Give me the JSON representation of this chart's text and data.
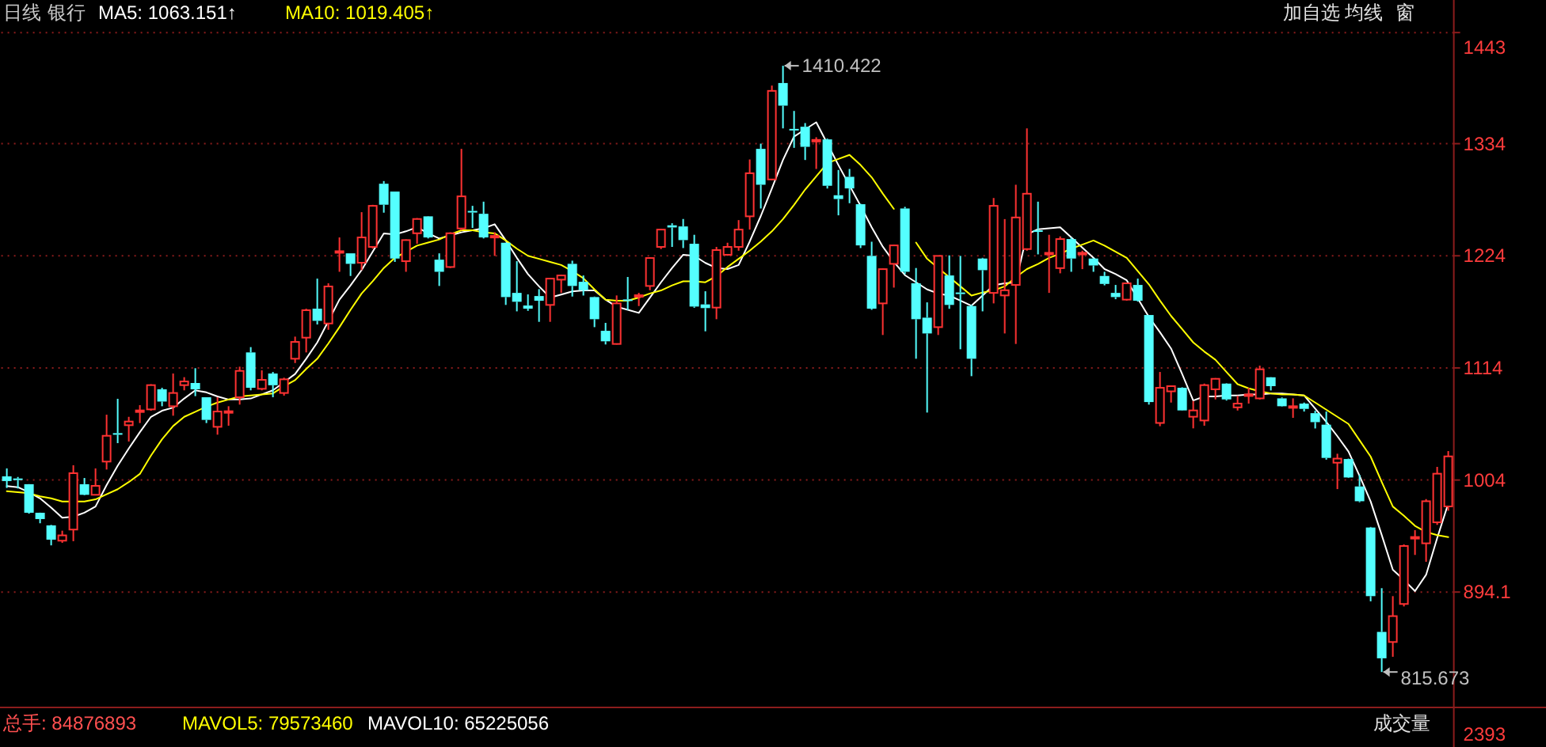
{
  "chart_data": {
    "type": "candlestick",
    "categories": [
      null,
      null,
      null,
      null,
      null,
      null,
      null,
      null,
      null,
      null,
      null,
      null,
      null,
      null,
      null,
      null,
      null,
      null,
      null,
      null,
      null,
      null,
      null,
      null,
      null,
      null,
      null,
      null,
      null,
      null,
      null,
      null,
      null,
      null,
      null,
      null,
      null,
      null,
      null,
      null,
      null,
      null,
      null,
      null,
      null,
      null,
      null,
      null,
      null,
      null,
      null,
      null,
      null,
      null,
      null,
      null,
      null,
      null,
      null,
      null,
      null,
      null,
      null,
      null,
      null,
      null,
      null,
      null,
      null,
      null,
      null,
      null,
      null,
      null,
      null,
      null,
      null,
      null,
      null,
      null,
      null,
      null,
      null,
      null,
      null,
      null,
      null,
      null,
      null,
      null,
      null,
      null,
      null,
      null,
      null,
      null,
      null,
      null,
      null,
      null,
      null,
      null,
      null,
      null,
      null,
      null,
      null,
      null,
      null,
      null,
      null,
      null,
      null,
      null,
      null,
      null,
      null,
      null,
      null,
      null,
      null,
      null,
      null,
      null,
      null,
      null,
      null,
      null,
      null,
      null,
      null
    ],
    "ohlc": [
      [
        1007.6,
        1015.4,
        996.2,
        1003
      ],
      [
        1005.5,
        1007,
        995.7,
        1004
      ],
      [
        999.9,
        1000,
        971,
        971.9
      ],
      [
        971.9,
        972,
        961.6,
        965.7
      ],
      [
        959.5,
        960,
        939.9,
        945.5
      ],
      [
        944.5,
        954.3,
        942.4,
        949.7
      ],
      [
        955.4,
        1018.5,
        944,
        1010.7
      ],
      [
        999.9,
        1006,
        989,
        989.5
      ],
      [
        989.5,
        1015.4,
        989,
        998.3
      ],
      [
        1022.1,
        1068.1,
        1014.3,
        1047.4
      ],
      [
        1050,
        1083.7,
        1040.2,
        1049
      ],
      [
        1057.8,
        1066,
        1041.8,
        1061.4
      ],
      [
        1071,
        1077.5,
        1059.9,
        1072.3
      ],
      [
        1073.3,
        1098,
        1072,
        1097.1
      ],
      [
        1093,
        1094.5,
        1076.4,
        1081
      ],
      [
        1076.4,
        1108.5,
        1067.1,
        1089.4
      ],
      [
        1097.1,
        1104.9,
        1092,
        1100.7
      ],
      [
        1099.2,
        1113.7,
        1086.3,
        1093
      ],
      [
        1085.2,
        1085.2,
        1059.9,
        1063
      ],
      [
        1056.2,
        1085.2,
        1048.5,
        1071.2
      ],
      [
        1070,
        1076.4,
        1057.3,
        1071.5
      ],
      [
        1085.2,
        1115.2,
        1078,
        1111.1
      ],
      [
        1129.2,
        1134.4,
        1092,
        1094.5
      ],
      [
        1093.5,
        1111.6,
        1092,
        1102.3
      ],
      [
        1108.5,
        1110,
        1085.2,
        1097
      ],
      [
        1089.4,
        1104.4,
        1086.8,
        1102.8
      ],
      [
        1123,
        1144.7,
        1118.8,
        1139.5
      ],
      [
        1143.7,
        1172.1,
        1129.2,
        1170.6
      ],
      [
        1172.1,
        1201.6,
        1156.6,
        1160.2
      ],
      [
        1157.6,
        1197,
        1151.4,
        1193.9
      ],
      [
        1227.5,
        1242,
        1208.3,
        1228.5
      ],
      [
        1226.4,
        1226.4,
        1204.2,
        1216.1
      ],
      [
        1217.2,
        1266.8,
        1209.9,
        1242
      ],
      [
        1232.7,
        1274,
        1231,
        1273
      ],
      [
        1294.7,
        1297.3,
        1266.3,
        1274.1
      ],
      [
        1287,
        1287,
        1218,
        1221.3
      ],
      [
        1218.7,
        1240,
        1208.3,
        1239.4
      ],
      [
        1246.1,
        1261,
        1235.8,
        1260.1
      ],
      [
        1262.7,
        1263,
        1241,
        1242
      ],
      [
        1220.2,
        1226.4,
        1194.4,
        1208.3
      ],
      [
        1213,
        1247,
        1212,
        1246.1
      ],
      [
        1250.8,
        1328.9,
        1249,
        1282.3
      ],
      [
        1268,
        1273,
        1251.3,
        1266.5
      ],
      [
        1265.2,
        1277.1,
        1241,
        1242
      ],
      [
        1243,
        1247.1,
        1223.9,
        1243.5
      ],
      [
        1236.8,
        1237,
        1175.8,
        1183.5
      ],
      [
        1187.6,
        1218.7,
        1169.5,
        1178.9
      ],
      [
        1175.2,
        1186.1,
        1170,
        1172.1
      ],
      [
        1184.5,
        1191.3,
        1159.2,
        1179.9
      ],
      [
        1175.8,
        1202,
        1159.2,
        1201.6
      ],
      [
        1200.6,
        1205.5,
        1187.6,
        1204.7
      ],
      [
        1216.1,
        1219.2,
        1184,
        1194.4
      ],
      [
        1198.5,
        1204.7,
        1185,
        1190.2
      ],
      [
        1183.5,
        1184,
        1154,
        1161.8
      ],
      [
        1150.4,
        1158.2,
        1137,
        1140.1
      ],
      [
        1137.5,
        1185.1,
        1137,
        1177.3
      ],
      [
        1181.2,
        1203.2,
        1170.6,
        1180.5
      ],
      [
        1184.8,
        1187.6,
        1174.7,
        1185.3
      ],
      [
        1194.4,
        1222.5,
        1190.2,
        1221.8
      ],
      [
        1232.7,
        1250.5,
        1230.6,
        1249.7
      ],
      [
        1253.9,
        1255.9,
        1232.7,
        1251.8
      ],
      [
        1252.8,
        1260.1,
        1231.6,
        1239.4
      ],
      [
        1235.8,
        1244.6,
        1173,
        1174.2
      ],
      [
        1176.3,
        1189.2,
        1149.9,
        1172.7
      ],
      [
        1173.2,
        1232.7,
        1161.8,
        1229.6
      ],
      [
        1225,
        1236.8,
        1224,
        1232.7
      ],
      [
        1232.7,
        1259,
        1229,
        1249.7
      ],
      [
        1262.7,
        1318.5,
        1249.7,
        1305
      ],
      [
        1328.9,
        1334,
        1270.4,
        1293.7
      ],
      [
        1298.9,
        1391,
        1298,
        1385.8
      ],
      [
        1393.5,
        1410.422,
        1349,
        1371.3
      ],
      [
        1348.5,
        1366.1,
        1329.9,
        1348
      ],
      [
        1350.6,
        1354.2,
        1318,
        1330.9
      ],
      [
        1337.5,
        1340.3,
        1309.2,
        1337.7
      ],
      [
        1338.2,
        1339,
        1290,
        1292.7
      ],
      [
        1283.4,
        1308.2,
        1263.7,
        1279.7
      ],
      [
        1301.5,
        1309.2,
        1275.6,
        1290.1
      ],
      [
        1274.6,
        1275,
        1231.6,
        1234.2
      ],
      [
        1223.9,
        1237.8,
        1171,
        1172.1
      ],
      [
        1177.3,
        1211.5,
        1146.3,
        1210.9
      ],
      [
        1216.1,
        1235,
        1192.8,
        1234.2
      ],
      [
        1270.4,
        1272,
        1206,
        1208.3
      ],
      [
        1197,
        1212,
        1123,
        1161.8
      ],
      [
        1163.3,
        1178.3,
        1070.2,
        1147.8
      ],
      [
        1154,
        1224,
        1146.3,
        1223.9
      ],
      [
        1204.7,
        1224.4,
        1172,
        1175.8
      ],
      [
        1188,
        1223.9,
        1132.3,
        1187
      ],
      [
        1174.7,
        1176,
        1105.9,
        1123
      ],
      [
        1221.3,
        1222,
        1169.5,
        1209.9
      ],
      [
        1187.6,
        1280.7,
        1177.3,
        1273
      ],
      [
        1185.1,
        1260,
        1147.8,
        1190.2
      ],
      [
        1195.4,
        1293.7,
        1137.5,
        1261.6
      ],
      [
        1230.6,
        1349,
        1229,
        1284.9
      ],
      [
        1249,
        1277.1,
        1225.4,
        1248
      ],
      [
        1226.4,
        1244.6,
        1187.6,
        1226.9
      ],
      [
        1211.9,
        1243,
        1206.8,
        1240.4
      ],
      [
        1240.4,
        1242,
        1208.3,
        1221.3
      ],
      [
        1226.4,
        1229,
        1210.9,
        1226.9
      ],
      [
        1221.3,
        1222,
        1208.3,
        1214.5
      ],
      [
        1204.2,
        1208.3,
        1195,
        1196.4
      ],
      [
        1187.6,
        1195.4,
        1181.4,
        1183.5
      ],
      [
        1181,
        1197.5,
        1180,
        1197
      ],
      [
        1195.4,
        1201.6,
        1179,
        1179.9
      ],
      [
        1165.9,
        1166,
        1078,
        1080.5
      ],
      [
        1060,
        1110,
        1056.8,
        1094.5
      ],
      [
        1091,
        1096.5,
        1080,
        1096.1
      ],
      [
        1094.5,
        1095,
        1072,
        1072.3
      ],
      [
        1066.1,
        1081.6,
        1054.7,
        1072.3
      ],
      [
        1062.4,
        1098.6,
        1057.3,
        1097.1
      ],
      [
        1093,
        1104,
        1083.1,
        1103.3
      ],
      [
        1098.6,
        1099,
        1082,
        1083.1
      ],
      [
        1075.3,
        1086.7,
        1072.2,
        1079
      ],
      [
        1087.5,
        1094.5,
        1079,
        1088
      ],
      [
        1084.1,
        1116.2,
        1083,
        1112.6
      ],
      [
        1104.8,
        1105,
        1091.9,
        1096.1
      ],
      [
        1084.1,
        1085,
        1076,
        1076.4
      ],
      [
        1076.1,
        1084.1,
        1065,
        1076.4
      ],
      [
        1079,
        1080,
        1071.2,
        1073.8
      ],
      [
        1069.6,
        1072,
        1054.6,
        1060.8
      ],
      [
        1058.3,
        1071.2,
        1024,
        1025.7
      ],
      [
        1021,
        1029.8,
        995.1,
        1025
      ],
      [
        1024.6,
        1025,
        1006,
        1006.5
      ],
      [
        997.7,
        1009.1,
        982.2,
        983.2
      ],
      [
        957.4,
        958,
        885,
        890.1
      ],
      [
        855,
        897.9,
        815.673,
        829.1
      ],
      [
        845.1,
        890.1,
        830.6,
        870.5
      ],
      [
        882.4,
        940.8,
        880,
        939.3
      ],
      [
        947.8,
        954.8,
        930.5,
        948.1
      ],
      [
        941.9,
        985.3,
        923.8,
        983.2
      ],
      [
        962.5,
        1016.9,
        960,
        1010.2
      ],
      [
        978.1,
        1032.4,
        973.9,
        1027.2
      ]
    ],
    "series": [
      {
        "type": "line",
        "color": "#ffffff",
        "values": [
          998,
          997,
          992,
          986,
          977,
          967,
          968,
          972,
          978,
          999,
          1018,
          1035,
          1051,
          1066,
          1072,
          1075,
          1084,
          1092,
          1090,
          1086,
          1083,
          1083,
          1084,
          1088,
          1092,
          1100,
          1108,
          1123,
          1139,
          1160,
          1181,
          1195,
          1210,
          1228,
          1246,
          1245,
          1248,
          1252,
          1246,
          1241,
          1244,
          1247,
          1249,
          1251,
          1255,
          1239,
          1222,
          1206,
          1194,
          1183,
          1186,
          1189,
          1190,
          1190,
          1181,
          1174,
          1171,
          1168,
          1183,
          1198,
          1212,
          1225,
          1224,
          1217,
          1212,
          1211,
          1215,
          1238,
          1263,
          1290,
          1318,
          1341,
          1348,
          1355,
          1334,
          1313,
          1293,
          1273,
          1252,
          1233,
          1218,
          1205,
          1198,
          1191,
          1187,
          1185,
          1180,
          1175,
          1185,
          1195,
          1197,
          1198,
          1245,
          1250,
          1251,
          1252,
          1242,
          1232,
          1222,
          1211,
          1206,
          1200,
          1182,
          1164,
          1149,
          1133,
          1108,
          1082,
          1086,
          1086,
          1087,
          1087,
          1088,
          1088,
          1089,
          1089,
          1088,
          1087,
          1074,
          1061,
          1047,
          1032,
          1008,
          983,
          950,
          916,
          906,
          895,
          911,
          947,
          981
        ]
      },
      {
        "type": "line",
        "color": "#ffff00",
        "values": [
          993,
          992,
          991,
          988,
          986,
          983,
          983,
          983,
          985,
          990,
          995,
          1002,
          1010,
          1028,
          1044,
          1057,
          1066,
          1071,
          1076,
          1080,
          1083,
          1086,
          1087,
          1088,
          1089,
          1096,
          1102,
          1113,
          1123,
          1138,
          1154,
          1171,
          1187,
          1199,
          1212,
          1222,
          1228,
          1234,
          1237,
          1240,
          1245,
          1249,
          1249,
          1247,
          1246,
          1239,
          1231,
          1224,
          1221,
          1218,
          1215,
          1209,
          1202,
          1191,
          1181,
          1180,
          1180,
          1183,
          1187,
          1190,
          1195,
          1199,
          1199,
          1198,
          1204,
          1213,
          1221,
          1229,
          1238,
          1248,
          1260,
          1274,
          1289,
          1302,
          1315,
          1319,
          1323,
          1313,
          1301,
          1285,
          1270,
          null,
          1237,
          1221,
          1212,
          1203,
          1194,
          1185,
          1188,
          1190,
          1194,
          1203,
          1211,
          1216,
          1222,
          1226,
          1231,
          1235,
          1239,
          1234,
          1228,
          1222,
          1209,
          1196,
          1180,
          1165,
          1152,
          1139,
          1130,
          1122,
          1110,
          1098,
          1094,
          1091,
          1089,
          1088,
          1088,
          1087,
          1080,
          1073,
          1066,
          1059,
          1043,
          1027,
          1002,
          978,
          969,
          959,
          953,
          950,
          948
        ]
      }
    ],
    "ylim": [
      784,
      1447
    ],
    "yticks": [
      894.1,
      1004,
      1114,
      1224,
      1334,
      1443
    ],
    "grid": "y",
    "annotations": [
      "日线",
      "银行",
      "MA5: 1063.151↑",
      "MA10: 1019.405↑",
      "加自选",
      "均线",
      "窗",
      "总手: 84876893",
      "MAVOL5: 79573460",
      "MAVOL10: 65225056",
      "成交量",
      "2393",
      "1410.422",
      "815.673"
    ]
  }
}
